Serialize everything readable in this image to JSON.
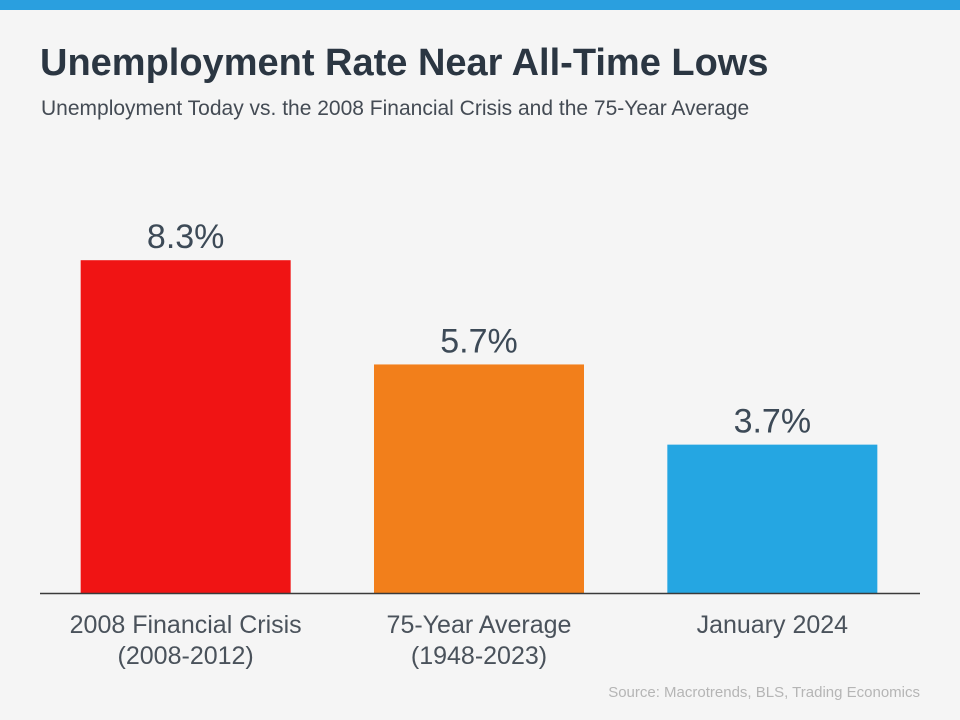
{
  "header": {
    "title": "Unemployment Rate Near All-Time Lows",
    "subtitle": "Unemployment Today vs. the 2008 Financial Crisis and the 75-Year Average"
  },
  "chart_data": {
    "type": "bar",
    "title": "Unemployment Rate Near All-Time Lows",
    "subtitle": "Unemployment Today vs. the 2008 Financial Crisis and the 75-Year Average",
    "categories": [
      [
        "2008 Financial Crisis",
        "(2008-2012)"
      ],
      [
        "75-Year Average",
        "(1948-2023)"
      ],
      [
        "January 2024"
      ]
    ],
    "values": [
      8.3,
      5.7,
      3.7
    ],
    "value_labels": [
      "8.3%",
      "5.7%",
      "3.7%"
    ],
    "colors": [
      "#f01414",
      "#f27f1b",
      "#25a6e2"
    ],
    "xlabel": "",
    "ylabel": "",
    "ylim": [
      0,
      10.4
    ],
    "grid": false,
    "legend": "none"
  },
  "footer": {
    "source": "Source: Macrotrends, BLS, Trading Economics"
  },
  "colors": {
    "accent_bar": "#2a9fdf",
    "title_text": "#2b3642",
    "axis": "#3a3a3a"
  }
}
